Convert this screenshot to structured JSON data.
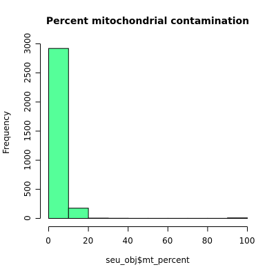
{
  "chart_data": {
    "type": "bar",
    "subtype": "histogram",
    "title": "Percent mitochondrial contamination",
    "xlabel": "seu_obj$mt_percent",
    "ylabel": "Frequency",
    "bin_edges": [
      0,
      10,
      20,
      30,
      40,
      50,
      60,
      70,
      80,
      90,
      100
    ],
    "values": [
      2920,
      175,
      5,
      2,
      1,
      1,
      1,
      1,
      1,
      8
    ],
    "xlim": [
      0,
      100
    ],
    "ylim": [
      0,
      3000
    ],
    "x_ticks": [
      0,
      20,
      40,
      60,
      80,
      100
    ],
    "y_ticks": [
      0,
      500,
      1000,
      1500,
      2000,
      2500,
      3000
    ],
    "x_tick_labels": [
      "0",
      "20",
      "40",
      "60",
      "80",
      "100"
    ],
    "y_tick_labels": [
      "0",
      "500",
      "1000",
      "1500",
      "2000",
      "2500",
      "3000"
    ],
    "bar_color": "#55ff99",
    "bar_border_color": "#000000",
    "grid": false,
    "legend": "none"
  }
}
